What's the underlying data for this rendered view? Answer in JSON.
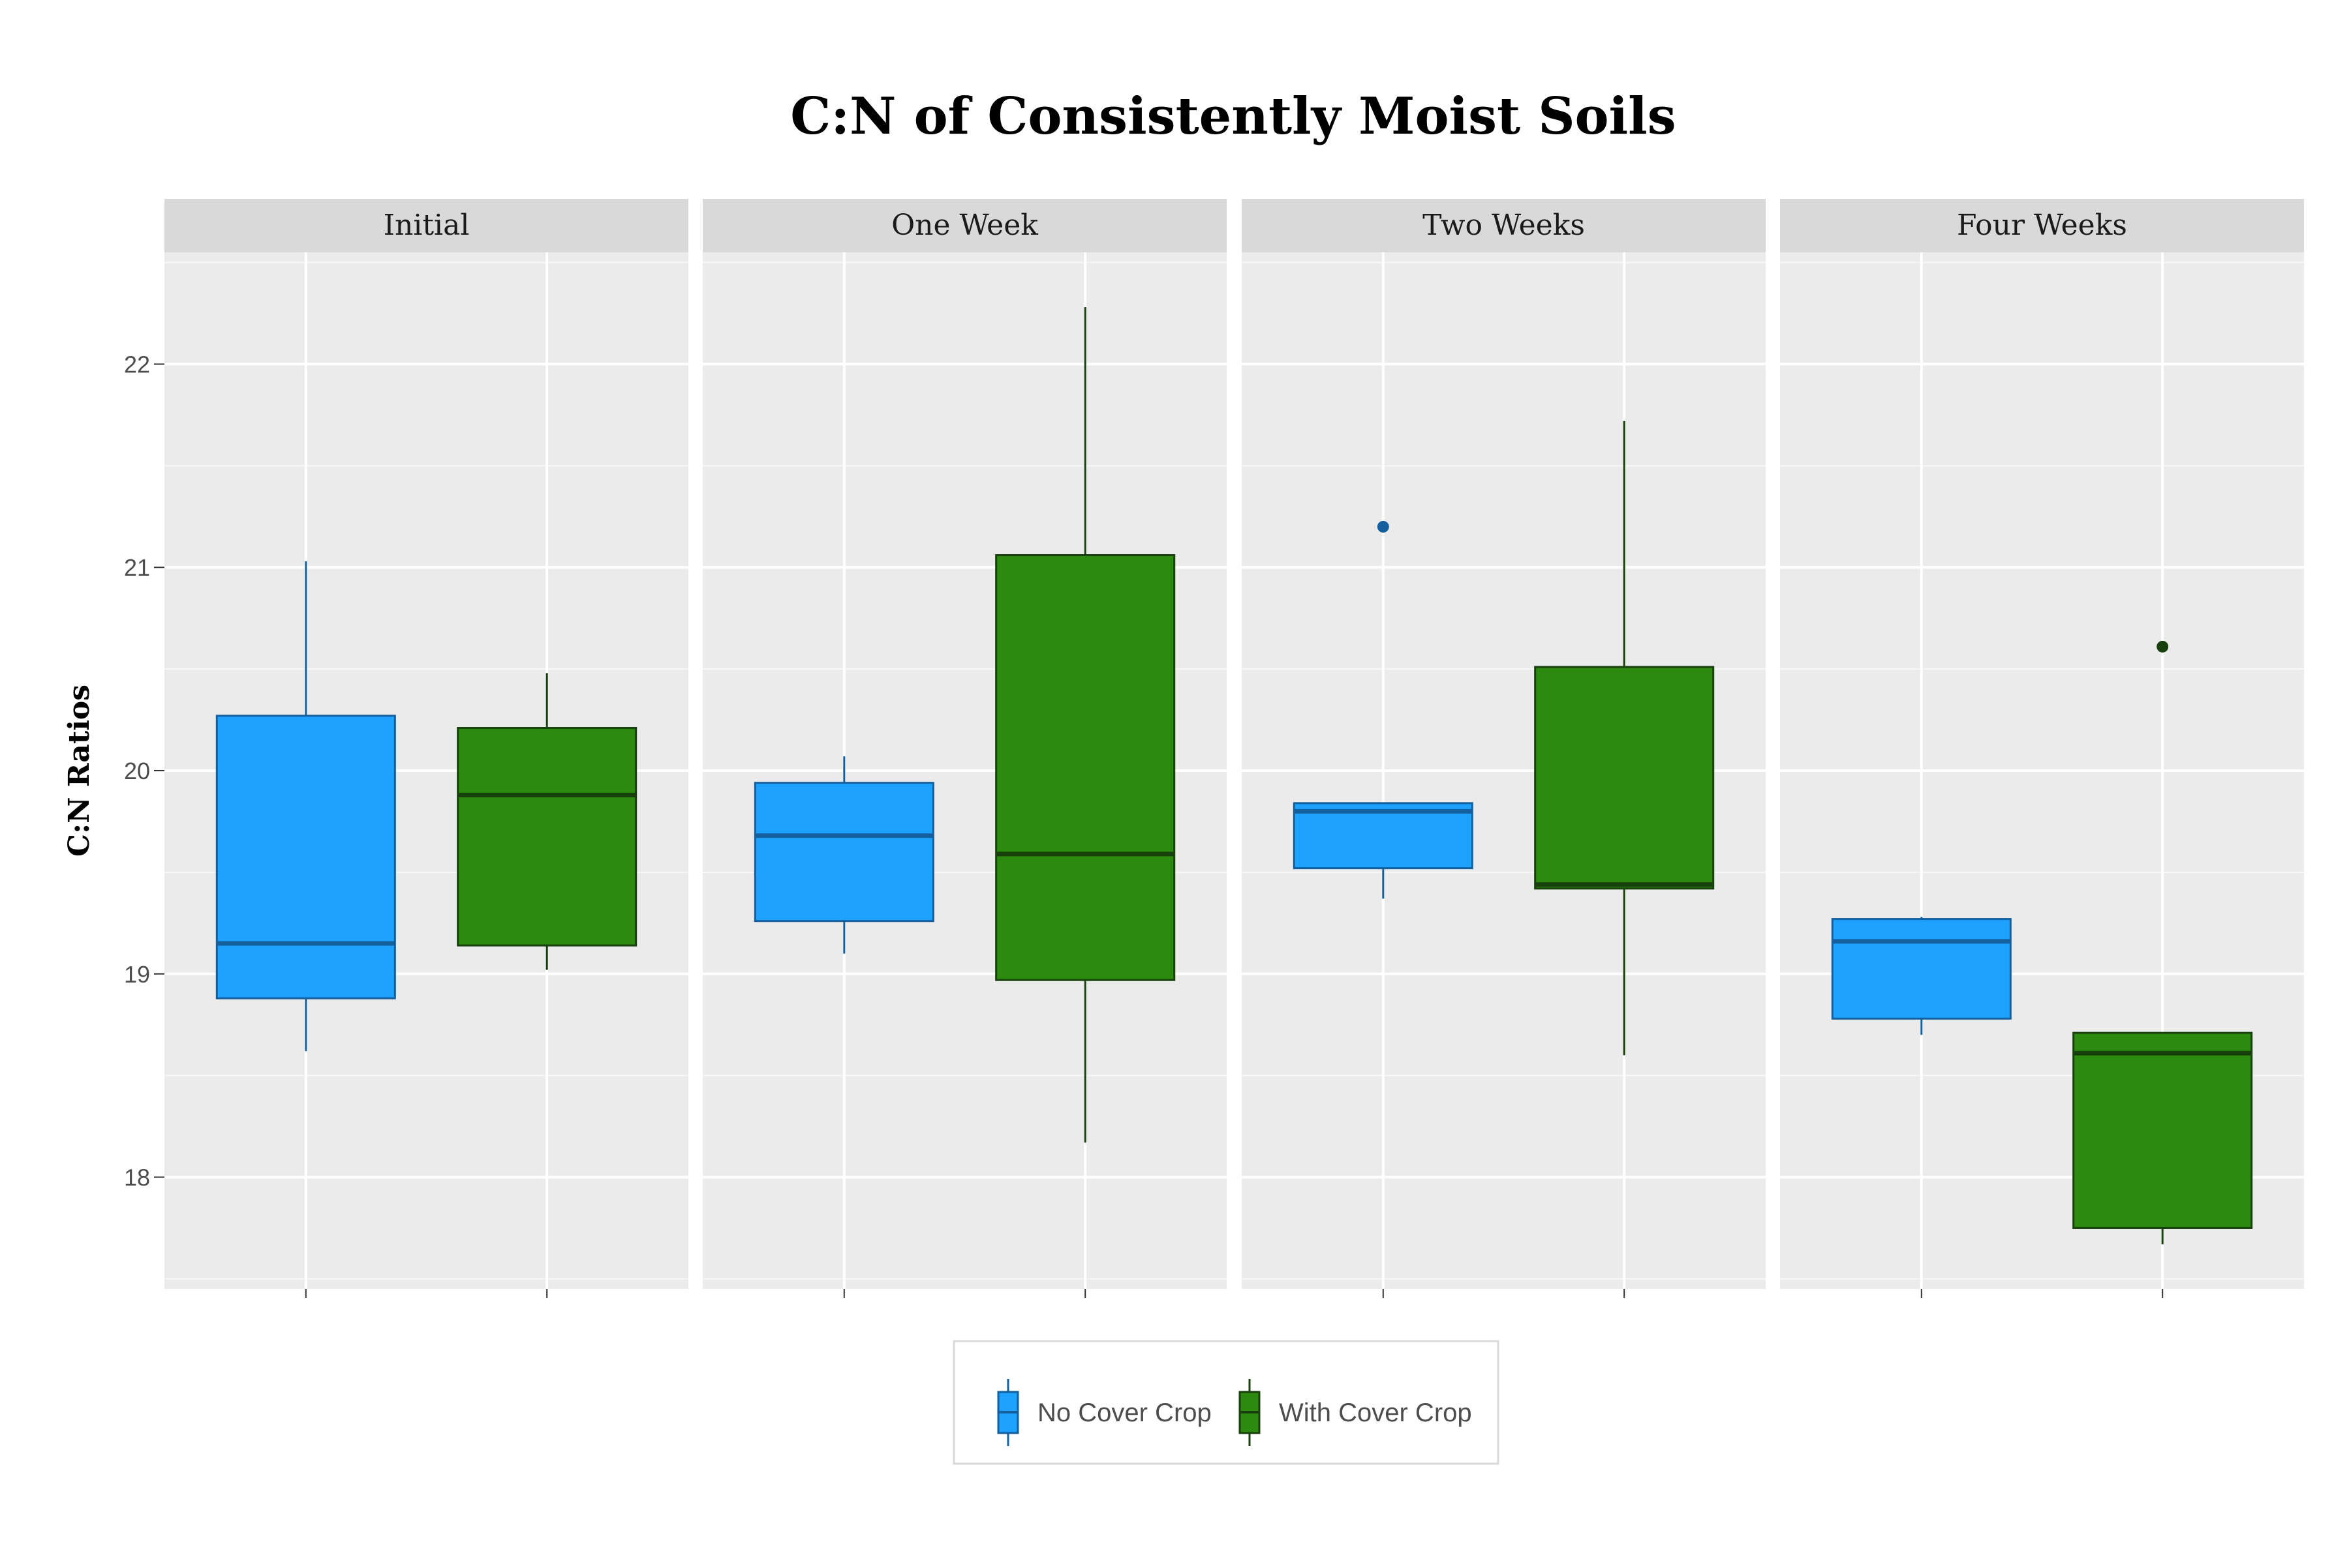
{
  "chart_data": {
    "type": "boxplot",
    "title": "C:N of Consistently Moist Soils",
    "ylabel": "C:N Ratios",
    "xlabel": "",
    "ylim": [
      17.45,
      22.55
    ],
    "yticks": [
      18,
      19,
      20,
      21,
      22
    ],
    "grid": true,
    "legend_position": "bottom",
    "colors": {
      "No Cover Crop": {
        "fill": "#1ea2ff",
        "line": "#14609e"
      },
      "With Cover Crop": {
        "fill": "#2c8a0e",
        "line": "#17400c"
      }
    },
    "series": [
      {
        "name": "No Cover Crop"
      },
      {
        "name": "With Cover Crop"
      }
    ],
    "panels": [
      {
        "label": "Initial",
        "boxes": [
          {
            "series": "No Cover Crop",
            "min": 18.62,
            "q1": 18.88,
            "median": 19.15,
            "q3": 20.27,
            "max": 21.03,
            "outliers": []
          },
          {
            "series": "With Cover Crop",
            "min": 19.02,
            "q1": 19.14,
            "median": 19.88,
            "q3": 20.21,
            "max": 20.48,
            "outliers": []
          }
        ]
      },
      {
        "label": "One Week",
        "boxes": [
          {
            "series": "No Cover Crop",
            "min": 19.1,
            "q1": 19.26,
            "median": 19.68,
            "q3": 19.94,
            "max": 20.07,
            "outliers": []
          },
          {
            "series": "With Cover Crop",
            "min": 18.17,
            "q1": 18.97,
            "median": 19.59,
            "q3": 21.06,
            "max": 22.28,
            "outliers": []
          }
        ]
      },
      {
        "label": "Two Weeks",
        "boxes": [
          {
            "series": "No Cover Crop",
            "min": 19.37,
            "q1": 19.52,
            "median": 19.8,
            "q3": 19.84,
            "max": 19.84,
            "outliers": [
              21.2
            ]
          },
          {
            "series": "With Cover Crop",
            "min": 18.6,
            "q1": 19.42,
            "median": 19.44,
            "q3": 20.51,
            "max": 21.72,
            "outliers": []
          }
        ]
      },
      {
        "label": "Four Weeks",
        "boxes": [
          {
            "series": "No Cover Crop",
            "min": 18.7,
            "q1": 18.78,
            "median": 19.16,
            "q3": 19.27,
            "max": 19.28,
            "outliers": []
          },
          {
            "series": "With Cover Crop",
            "min": 17.67,
            "q1": 17.75,
            "median": 18.61,
            "q3": 18.71,
            "max": 18.71,
            "outliers": [
              20.61
            ]
          }
        ]
      }
    ]
  }
}
